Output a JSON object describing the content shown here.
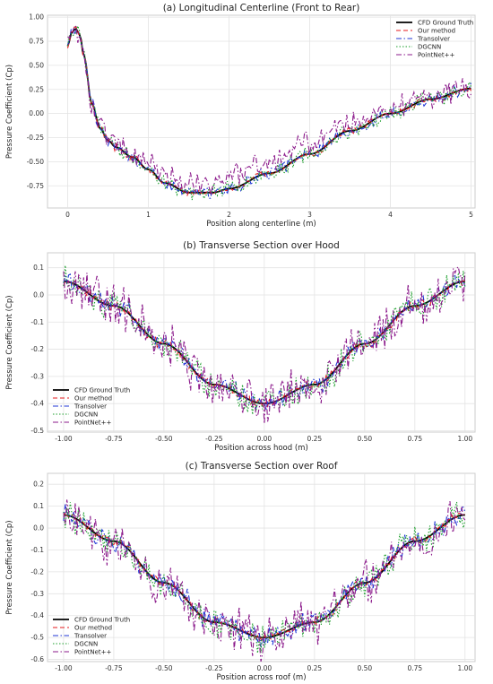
{
  "chart_data": [
    {
      "type": "line",
      "title": "(a) Longitudinal Centerline (Front to Rear)",
      "xlabel": "Position along centerline (m)",
      "ylabel": "Pressure Coefficient (Cp)",
      "xlim": [
        -0.25,
        5.05
      ],
      "ylim": [
        -0.98,
        1.02
      ],
      "xticks": [
        "0",
        "1",
        "2",
        "3",
        "4",
        "5"
      ],
      "yticks": [
        "-0.75",
        "-0.50",
        "-0.25",
        "0.00",
        "0.25",
        "0.50",
        "0.75",
        "1.00"
      ],
      "grid": true,
      "legend_position": "top-right",
      "series": [
        {
          "name": "CFD Ground Truth",
          "color": "#000000",
          "style": "solid",
          "x": [
            0,
            0.05,
            0.1,
            0.15,
            0.2,
            0.3,
            0.4,
            0.5,
            0.6,
            0.8,
            1.0,
            1.2,
            1.5,
            1.8,
            2.0,
            2.5,
            3.0,
            3.5,
            4.0,
            4.5,
            5.0
          ],
          "values": [
            0.7,
            0.84,
            0.88,
            0.82,
            0.6,
            0.1,
            -0.15,
            -0.28,
            -0.35,
            -0.45,
            -0.58,
            -0.72,
            -0.82,
            -0.82,
            -0.78,
            -0.62,
            -0.42,
            -0.18,
            0.0,
            0.15,
            0.26
          ]
        },
        {
          "name": "Our method",
          "color": "#e41a1c",
          "style": "dashed",
          "noise": 0.025
        },
        {
          "name": "Transolver",
          "color": "#1f35d6",
          "style": "dashdot",
          "noise": 0.045
        },
        {
          "name": "DGCNN",
          "color": "#1a9e2a",
          "style": "dotted",
          "noise": 0.06
        },
        {
          "name": "PointNet++",
          "color": "#8b1a8b",
          "style": "dashdot",
          "noise": 0.09,
          "bias": 0.12
        }
      ]
    },
    {
      "type": "line",
      "title": "(b) Transverse Section over Hood",
      "xlabel": "Position across hood (m)",
      "ylabel": "Pressure Coefficient (Cp)",
      "xlim": [
        -1.08,
        1.05
      ],
      "ylim": [
        -0.505,
        0.155
      ],
      "xticks": [
        "-1.00",
        "-0.75",
        "-0.50",
        "-0.25",
        "0.00",
        "0.25",
        "0.50",
        "0.75",
        "1.00"
      ],
      "yticks": [
        "-0.5",
        "-0.4",
        "-0.3",
        "-0.2",
        "-0.1",
        "0.0",
        "0.1"
      ],
      "grid": true,
      "legend_position": "bottom-left",
      "series": [
        {
          "name": "CFD Ground Truth",
          "color": "#000000",
          "style": "solid",
          "x": [
            -1,
            -0.75,
            -0.5,
            -0.25,
            0,
            0.25,
            0.5,
            0.75,
            1
          ],
          "values": [
            0.05,
            -0.04,
            -0.18,
            -0.33,
            -0.4,
            -0.33,
            -0.18,
            -0.04,
            0.05
          ]
        },
        {
          "name": "Our method",
          "color": "#e41a1c",
          "style": "dashed",
          "noise": 0.012
        },
        {
          "name": "Transolver",
          "color": "#1f35d6",
          "style": "dashdot",
          "noise": 0.025
        },
        {
          "name": "DGCNN",
          "color": "#1a9e2a",
          "style": "dotted",
          "noise": 0.04
        },
        {
          "name": "PointNet++",
          "color": "#8b1a8b",
          "style": "dashdot",
          "noise": 0.06
        }
      ]
    },
    {
      "type": "line",
      "title": "(c) Transverse Section over Roof",
      "xlabel": "Position across roof (m)",
      "ylabel": "Pressure Coefficient (Cp)",
      "xlim": [
        -1.08,
        1.05
      ],
      "ylim": [
        -0.61,
        0.25
      ],
      "xticks": [
        "-1.00",
        "-0.75",
        "-0.50",
        "-0.25",
        "0.00",
        "0.25",
        "0.50",
        "0.75",
        "1.00"
      ],
      "yticks": [
        "-0.6",
        "-0.5",
        "-0.4",
        "-0.3",
        "-0.2",
        "-0.1",
        "0.0",
        "0.1",
        "0.2"
      ],
      "grid": true,
      "legend_position": "bottom-left",
      "series": [
        {
          "name": "CFD Ground Truth",
          "color": "#000000",
          "style": "solid",
          "x": [
            -1,
            -0.75,
            -0.5,
            -0.25,
            0,
            0.25,
            0.5,
            0.75,
            1
          ],
          "values": [
            0.06,
            -0.06,
            -0.25,
            -0.43,
            -0.5,
            -0.43,
            -0.25,
            -0.06,
            0.06
          ]
        },
        {
          "name": "Our method",
          "color": "#e41a1c",
          "style": "dashed",
          "noise": 0.015
        },
        {
          "name": "Transolver",
          "color": "#1f35d6",
          "style": "dashdot",
          "noise": 0.035
        },
        {
          "name": "DGCNN",
          "color": "#1a9e2a",
          "style": "dotted",
          "noise": 0.05
        },
        {
          "name": "PointNet++",
          "color": "#8b1a8b",
          "style": "dashdot",
          "noise": 0.075
        }
      ]
    }
  ]
}
